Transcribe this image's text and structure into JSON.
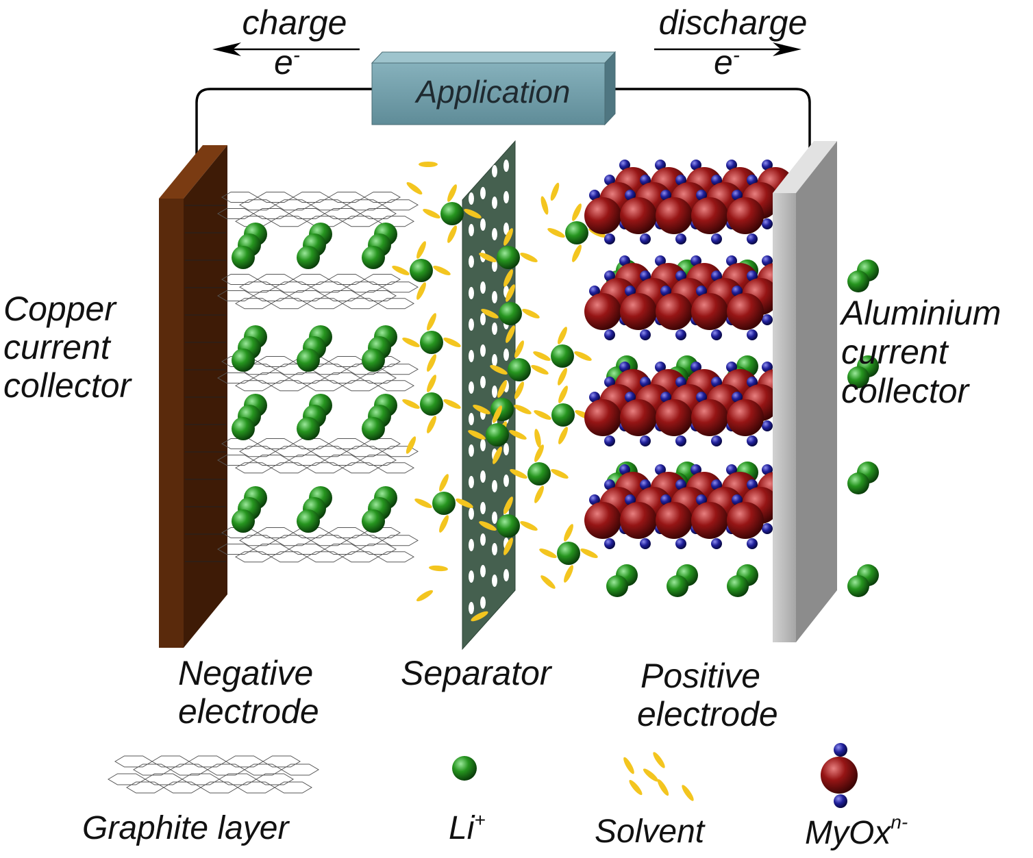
{
  "top": {
    "charge_label": "charge",
    "charge_electron": "e",
    "charge_electron_sup": "-",
    "discharge_label": "discharge",
    "discharge_electron": "e",
    "discharge_electron_sup": "-",
    "application_label": "Application"
  },
  "sides": {
    "copper_lines": [
      "Copper",
      "current",
      "collector"
    ],
    "aluminium_lines": [
      "Aluminium",
      "current",
      "collector"
    ]
  },
  "bottom": {
    "negative_lines": [
      "Negative",
      "electrode"
    ],
    "separator": "Separator",
    "positive_lines": [
      "Positive",
      "electrode"
    ]
  },
  "legend": {
    "graphite": "Graphite layer",
    "li": "Li",
    "li_sup": "+",
    "solvent": "Solvent",
    "metal_oxide": "MyOx",
    "metal_oxide_sup": "n-"
  },
  "colors": {
    "copper": "#5a2a0c",
    "aluminium": "#b4b4b4",
    "separator": "#45604f",
    "application_box": "#6e9aa6",
    "lithium": "#1f8a1f",
    "solvent": "#f3c51f",
    "metal_oxide": "#8e1212",
    "oxygen": "#1c1c8c"
  }
}
